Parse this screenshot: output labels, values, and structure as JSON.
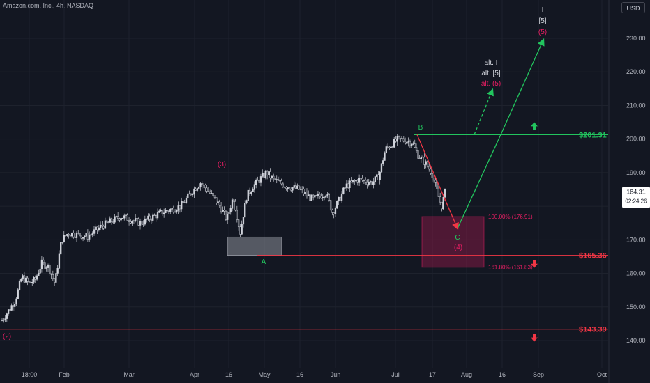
{
  "header": {
    "symbol": "Amazon.com, Inc., 4h, NASDAQ",
    "currency_button": "USD"
  },
  "price_tag": {
    "price": "184.31",
    "countdown": "02:24:26"
  },
  "colors": {
    "bg": "#131722",
    "grid": "#1e222d",
    "candle": "#d1d4dc",
    "green": "#22c55e",
    "red": "#f23645",
    "magenta": "#e91e63",
    "white": "#d1d4dc"
  },
  "chart_data": {
    "type": "candlestick",
    "ylim": [
      137,
      237
    ],
    "y_ticks": [
      140,
      150,
      160,
      170,
      180,
      190,
      200,
      210,
      220,
      230
    ],
    "x_ticks": [
      "18:00",
      "Feb",
      "Mar",
      "Apr",
      "16",
      "May",
      "16",
      "Jun",
      "Jul",
      "17",
      "Aug",
      "16",
      "Sep",
      "Oct"
    ],
    "price_path": [
      [
        0,
        146
      ],
      [
        2,
        152
      ],
      [
        3,
        159
      ],
      [
        4,
        157
      ],
      [
        5,
        158
      ],
      [
        6,
        163
      ],
      [
        7,
        162
      ],
      [
        8,
        157
      ],
      [
        9,
        170
      ],
      [
        10,
        172
      ],
      [
        13,
        171
      ],
      [
        15,
        174
      ],
      [
        18,
        177
      ],
      [
        21,
        175
      ],
      [
        24,
        178
      ],
      [
        27,
        180
      ],
      [
        29,
        185
      ],
      [
        30,
        187
      ],
      [
        31,
        185
      ],
      [
        33,
        180
      ],
      [
        34,
        176
      ],
      [
        35,
        183
      ],
      [
        36,
        172
      ],
      [
        37,
        183
      ],
      [
        38,
        186
      ],
      [
        40,
        190
      ],
      [
        41,
        188
      ],
      [
        43,
        186
      ],
      [
        45,
        185
      ],
      [
        47,
        182
      ],
      [
        49,
        184
      ],
      [
        50,
        178
      ],
      [
        52,
        186
      ],
      [
        54,
        188
      ],
      [
        56,
        187
      ],
      [
        57,
        189
      ],
      [
        58,
        197
      ],
      [
        60,
        200
      ],
      [
        62,
        199
      ],
      [
        63,
        195
      ],
      [
        64,
        193
      ],
      [
        65,
        190
      ],
      [
        66,
        183
      ],
      [
        66.5,
        180
      ],
      [
        67,
        184
      ]
    ],
    "horizontal_levels": [
      {
        "label": "$201.31",
        "value": 201.31,
        "color": "green",
        "arrow": "up"
      },
      {
        "label": "$165.36",
        "value": 165.36,
        "color": "red",
        "arrow": "down"
      },
      {
        "label": "$143.39",
        "value": 143.39,
        "color": "red",
        "arrow": "down"
      }
    ],
    "fib_labels": [
      {
        "label": "100.00% (176.91)",
        "value": 176.91
      },
      {
        "label": "161.80% (161.83)",
        "value": 161.83
      }
    ],
    "target_box": {
      "top": 176.91,
      "bottom": 161.83
    },
    "support_box": {
      "top": 170.8,
      "bottom": 165.36
    },
    "wave_labels": [
      {
        "text": "(2)",
        "color": "magenta"
      },
      {
        "text": "(3)",
        "color": "magenta"
      },
      {
        "text": "A",
        "color": "green"
      },
      {
        "text": "B",
        "color": "green"
      },
      {
        "text": "C",
        "color": "green"
      },
      {
        "text": "(4)",
        "color": "magenta"
      },
      {
        "text": "I",
        "color": "white"
      },
      {
        "text": "[5]",
        "color": "white"
      },
      {
        "text": "(5)",
        "color": "magenta"
      },
      {
        "text": "alt. I",
        "color": "white"
      },
      {
        "text": "alt. [5]",
        "color": "white"
      },
      {
        "text": "alt. (5)",
        "color": "magenta"
      }
    ]
  }
}
